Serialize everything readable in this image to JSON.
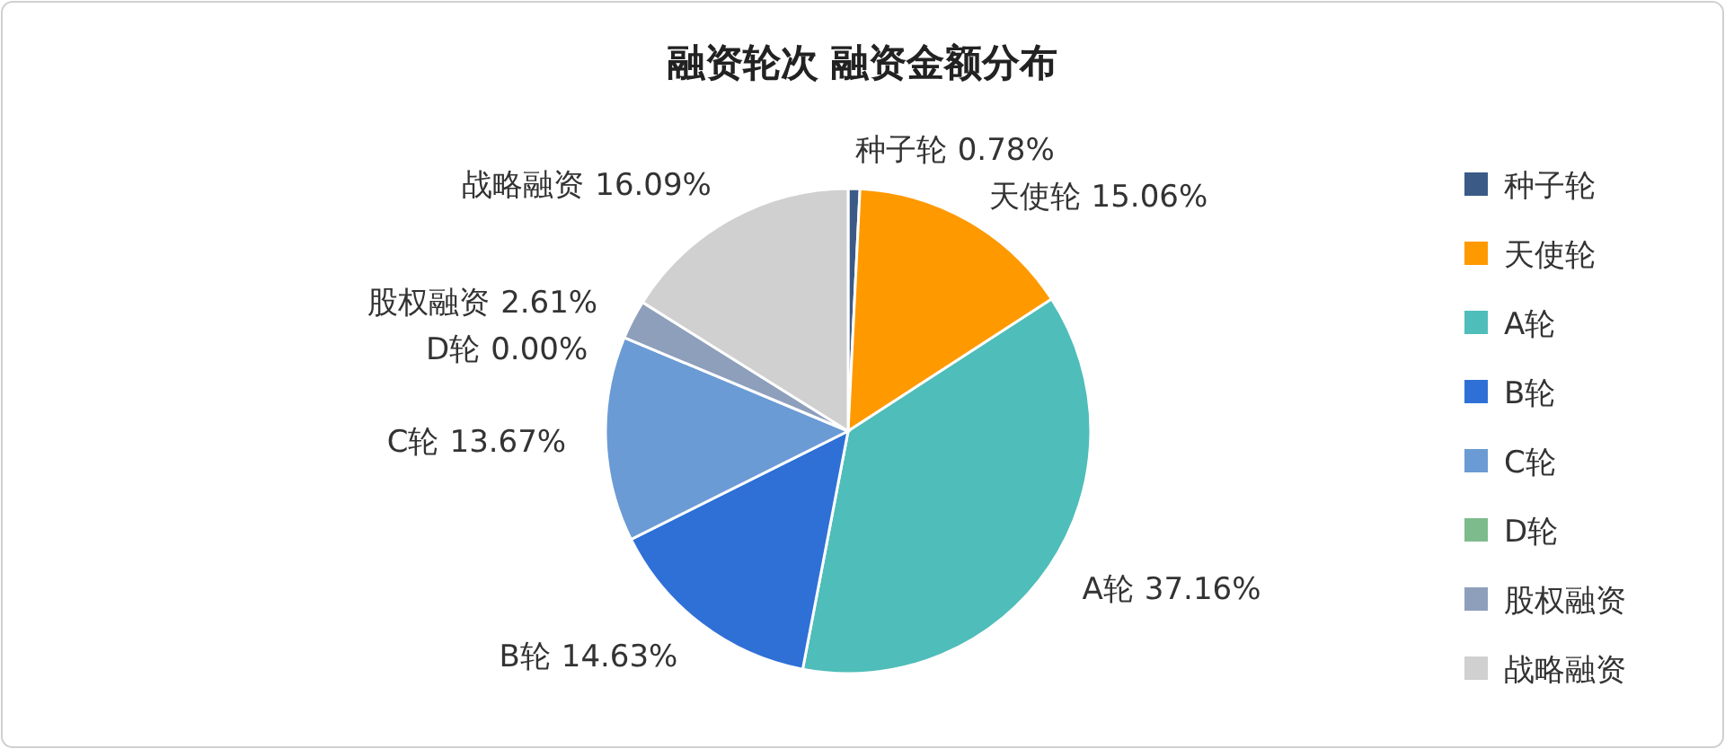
{
  "chart_data": {
    "type": "pie",
    "title": "融资轮次 融资金额分布",
    "categories": [
      "种子轮",
      "天使轮",
      "A轮",
      "B轮",
      "C轮",
      "D轮",
      "股权融资",
      "战略融资"
    ],
    "values": [
      0.78,
      15.06,
      37.16,
      14.63,
      13.67,
      0.0,
      2.61,
      16.09
    ],
    "colors": [
      "#3b5a86",
      "#ff9900",
      "#4fbdb9",
      "#2f70d6",
      "#6b9bd4",
      "#7dbb8c",
      "#8e9fbc",
      "#d0d0d0"
    ],
    "value_labels": [
      "0.78%",
      "15.06%",
      "37.16%",
      "14.63%",
      "13.67%",
      "0.00%",
      "2.61%",
      "16.09%"
    ],
    "legend": "right"
  }
}
